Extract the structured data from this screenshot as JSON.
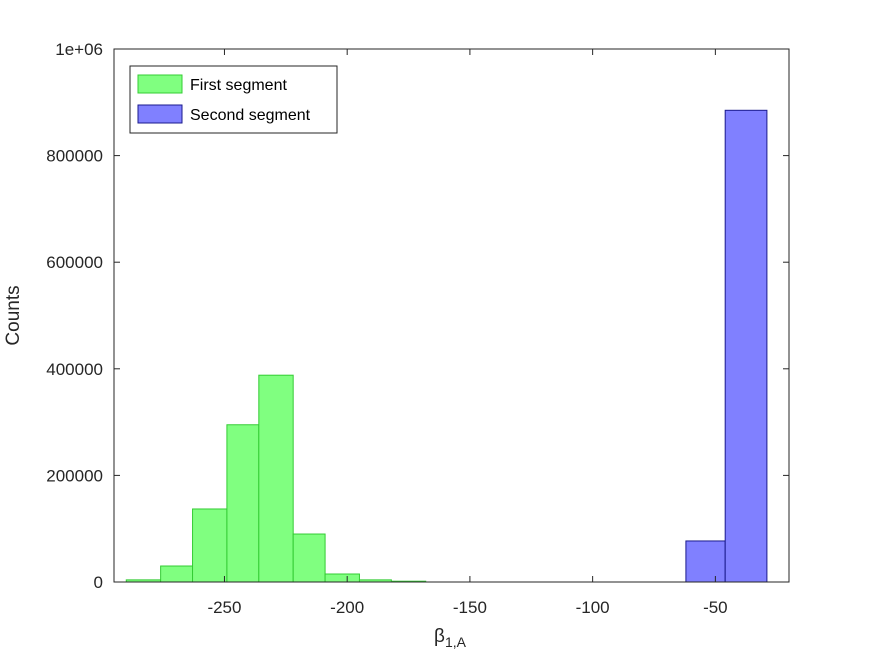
{
  "chart_data": {
    "type": "bar",
    "subtype": "histogram",
    "title": "",
    "xlabel": "β",
    "xlabel_subscript": "1,A",
    "ylabel": "Counts",
    "xlim": [
      -295,
      -20
    ],
    "ylim": [
      0,
      1000000
    ],
    "xticks": [
      -250,
      -200,
      -150,
      -100,
      -50
    ],
    "yticks": [
      0,
      200000,
      400000,
      600000,
      800000,
      1000000
    ],
    "ytick_labels": [
      "0",
      "200000",
      "400000",
      "600000",
      "800000",
      "1e+06"
    ],
    "grid": false,
    "legend_position": "top-left",
    "series": [
      {
        "name": "First segment",
        "fill": "#80ff80",
        "edge": "#33cc33",
        "bins": [
          {
            "x0": -290,
            "x1": -276,
            "value": 4000
          },
          {
            "x0": -276,
            "x1": -263,
            "value": 30000
          },
          {
            "x0": -263,
            "x1": -249,
            "value": 137000
          },
          {
            "x0": -249,
            "x1": -236,
            "value": 295000
          },
          {
            "x0": -236,
            "x1": -222,
            "value": 388000
          },
          {
            "x0": -222,
            "x1": -209,
            "value": 90000
          },
          {
            "x0": -209,
            "x1": -195,
            "value": 15000
          },
          {
            "x0": -195,
            "x1": -182,
            "value": 4000
          },
          {
            "x0": -182,
            "x1": -168,
            "value": 1500
          }
        ]
      },
      {
        "name": "Second segment",
        "fill": "#8080ff",
        "edge": "#1a1a8c",
        "bins": [
          {
            "x0": -62,
            "x1": -46,
            "value": 77000
          },
          {
            "x0": -46,
            "x1": -29,
            "value": 885000
          }
        ]
      }
    ]
  }
}
